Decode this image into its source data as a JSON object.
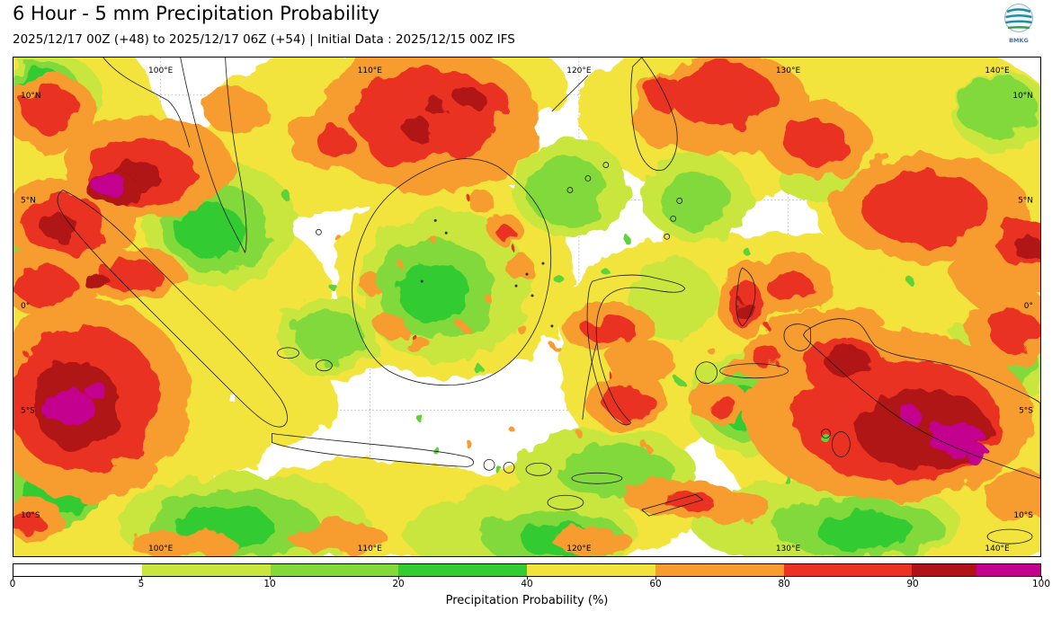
{
  "header": {
    "title": "6 Hour - 5 mm Precipitation Probability",
    "subtitle": "2025/12/17 00Z (+48) to 2025/12/17 06Z (+54) | Initial Data : 2025/12/15 00Z IFS",
    "logo_text": "BMKG"
  },
  "map": {
    "lat_labels": [
      "10°N",
      "5°N",
      "0°",
      "5°S",
      "10°S"
    ],
    "lon_labels": [
      "100°E",
      "110°E",
      "120°E",
      "130°E",
      "140°E"
    ]
  },
  "colorbar": {
    "label": "Precipitation Probability (%)",
    "ticks": [
      "0",
      "5",
      "10",
      "20",
      "40",
      "60",
      "80",
      "90",
      "100"
    ],
    "cells": [
      {
        "color": "#ffffff",
        "span": 12.5
      },
      {
        "color": "#c8e63e",
        "span": 12.5
      },
      {
        "color": "#82d93a",
        "span": 12.5
      },
      {
        "color": "#33cc33",
        "span": 12.5
      },
      {
        "color": "#f2e33c",
        "span": 12.5
      },
      {
        "color": "#f79c2d",
        "span": 12.5
      },
      {
        "color": "#ea3323",
        "span": 12.5
      },
      {
        "color": "#b01218",
        "span": 6.25
      },
      {
        "color": "#c4008f",
        "span": 6.25
      }
    ]
  },
  "chart_data": {
    "type": "heatmap",
    "title": "6 Hour - 5 mm Precipitation Probability",
    "valid_period": "2025/12/17 00Z (+48) to 2025/12/17 06Z (+54)",
    "initial_data": "2025/12/15 00Z IFS",
    "colorbar_label": "Precipitation Probability (%)",
    "scale_ticks": [
      0,
      5,
      10,
      20,
      40,
      60,
      80,
      90,
      100
    ],
    "lat_ticks": [
      "10°N",
      "5°N",
      "0°",
      "5°S",
      "10°S"
    ],
    "lon_ticks": [
      "100°E",
      "110°E",
      "120°E",
      "130°E",
      "140°E"
    ]
  }
}
